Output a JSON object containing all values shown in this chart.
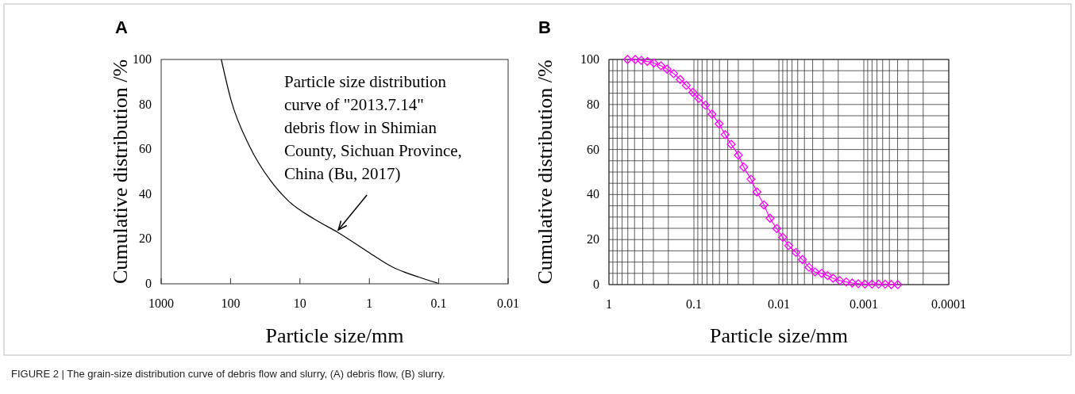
{
  "chart_data": [
    {
      "type": "line",
      "title": "A",
      "xlabel": "Particle size/mm",
      "ylabel": "Cumulative distribution /%",
      "log": "x",
      "xlim": [
        1000,
        0.01
      ],
      "xticks": [
        1000,
        100,
        10,
        1,
        0.1,
        0.01
      ],
      "ylim": [
        0,
        100
      ],
      "yticks": [
        0,
        20,
        40,
        60,
        80,
        100
      ],
      "grid": false,
      "x": [
        136,
        98,
        54,
        27,
        14.6,
        6.1,
        2.8,
        1.08,
        0.46,
        0.19,
        0.103
      ],
      "series": [
        {
          "color": "#000000",
          "values": [
            100,
            81.7,
            61.7,
            46.3,
            36.9,
            28.7,
            22.8,
            14.5,
            7.4,
            2.9,
            0.3
          ]
        }
      ],
      "annotations": [
        {
          "text": "Particle size distribution\ncurve of \"2013.7.14\"\ndebris flow in Shimian\nCounty, Sichuan Province,\nChina (Bu, 2017)",
          "x": 2.8,
          "y": 24
        },
        "FIGURE 2 | The grain-size distribution curve of debris flow and slurry, (A) debris flow, (B) slurry."
      ]
    },
    {
      "type": "line",
      "title": "B",
      "xlabel": "Particle size/mm",
      "ylabel": "Cumulative distribution /%",
      "log": "x",
      "xlim": [
        1,
        0.0001
      ],
      "marker": "diamond",
      "grid": true,
      "ylim": [
        0,
        100
      ],
      "xticks": [
        1,
        {
          "value": 0.9,
          "label": null
        },
        {
          "value": 0.8,
          "label": null
        },
        {
          "value": 0.7,
          "label": null
        },
        {
          "value": 0.6,
          "label": null
        },
        {
          "value": 0.5,
          "label": null
        },
        {
          "value": 0.4,
          "label": null
        },
        {
          "value": 0.3,
          "label": null
        },
        {
          "value": 0.2,
          "label": null
        },
        0.1,
        {
          "value": 0.09,
          "label": null
        },
        {
          "value": 0.08,
          "label": null
        },
        {
          "value": 0.07,
          "label": null
        },
        {
          "value": 0.06,
          "label": null
        },
        {
          "value": 0.05,
          "label": null
        },
        {
          "value": 0.04,
          "label": null
        },
        {
          "value": 0.03,
          "label": null
        },
        {
          "value": 0.02,
          "label": null
        },
        0.01,
        {
          "value": 0.009,
          "label": null
        },
        {
          "value": 0.008,
          "label": null
        },
        {
          "value": 0.007,
          "label": null
        },
        {
          "value": 0.006,
          "label": null
        },
        {
          "value": 0.005,
          "label": null
        },
        {
          "value": 0.004,
          "label": null
        },
        {
          "value": 0.003,
          "label": null
        },
        {
          "value": 0.002,
          "label": null
        },
        0.001,
        {
          "value": 0.0009,
          "label": null
        },
        {
          "value": 0.0008,
          "label": null
        },
        {
          "value": 0.0007,
          "label": null
        },
        {
          "value": 0.0006,
          "label": null
        },
        {
          "value": 0.0005,
          "label": null
        },
        {
          "value": 0.0004,
          "label": null
        },
        {
          "value": 0.0003,
          "label": null
        },
        {
          "value": 0.0002,
          "label": null
        },
        0.0001
      ],
      "yticks": [
        0,
        {
          "value": 5,
          "label": null
        },
        {
          "value": 10,
          "label": null
        },
        {
          "value": 15,
          "label": null
        },
        20,
        {
          "value": 25,
          "label": null
        },
        {
          "value": 30,
          "label": null
        },
        {
          "value": 35,
          "label": null
        },
        40,
        {
          "value": 45,
          "label": null
        },
        {
          "value": 50,
          "label": null
        },
        {
          "value": 55,
          "label": null
        },
        60,
        {
          "value": 65,
          "label": null
        },
        {
          "value": 70,
          "label": null
        },
        {
          "value": 75,
          "label": null
        },
        80,
        {
          "value": 85,
          "label": null
        },
        {
          "value": 90,
          "label": null
        },
        {
          "value": 95,
          "label": null
        },
        100
      ],
      "x": [
        0.604,
        0.49,
        0.416,
        0.353,
        0.296,
        0.244,
        0.207,
        0.173,
        0.145,
        0.123,
        0.103,
        0.0875,
        0.0732,
        0.0612,
        0.0505,
        0.0429,
        0.0364,
        0.03,
        0.0259,
        0.0213,
        0.0181,
        0.015,
        0.0127,
        0.0106,
        0.009,
        0.00766,
        0.0063,
        0.00528,
        0.00442,
        0.00375,
        0.00314,
        0.00267,
        0.0023,
        0.00192,
        0.00161,
        0.00137,
        0.00116,
        0.00097,
        0.0008,
        0.00067,
        0.00056,
        0.000475,
        0.000398
      ],
      "series": [
        {
          "color": "#ff00ff",
          "values": [
            100,
            100,
            99.6,
            99.1,
            98.4,
            97.2,
            95.7,
            93.7,
            91.1,
            88.5,
            85.4,
            82.7,
            79.7,
            75.7,
            71.4,
            66.6,
            62.3,
            57.5,
            52.2,
            46.8,
            41.1,
            35.4,
            29.5,
            24.9,
            21.0,
            17.3,
            14.3,
            11.1,
            7.7,
            5.6,
            5.0,
            4.0,
            2.8,
            1.8,
            1.2,
            0.7,
            0.4,
            0.2,
            0.2,
            0.2,
            0.2,
            0,
            0
          ]
        }
      ]
    }
  ]
}
